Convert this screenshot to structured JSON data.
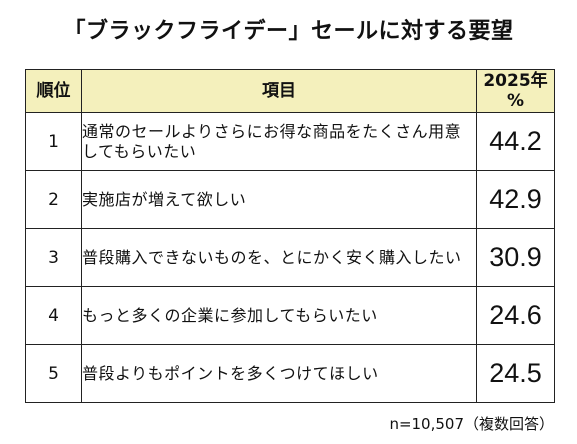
{
  "title": "「ブラックフライデー」セールに対する要望",
  "table": {
    "headers": {
      "rank": "順位",
      "item": "項目",
      "year": "2025年",
      "unit": "%"
    },
    "rows": [
      {
        "rank": "1",
        "item": "通常のセールよりさらにお得な商品をたくさん用意してもらいたい",
        "value": "44.2"
      },
      {
        "rank": "2",
        "item": "実施店が増えて欲しい",
        "value": "42.9"
      },
      {
        "rank": "3",
        "item": "普段購入できないものを、とにかく安く購入したい",
        "value": "30.9"
      },
      {
        "rank": "4",
        "item": "もっと多くの企業に参加してもらいたい",
        "value": "24.6"
      },
      {
        "rank": "5",
        "item": "普段よりもポイントを多くつけてほしい",
        "value": "24.5"
      }
    ]
  },
  "footnote": "n=10,507（複数回答）",
  "colors": {
    "header_background": "#f4f0bc",
    "border": "#222222"
  }
}
